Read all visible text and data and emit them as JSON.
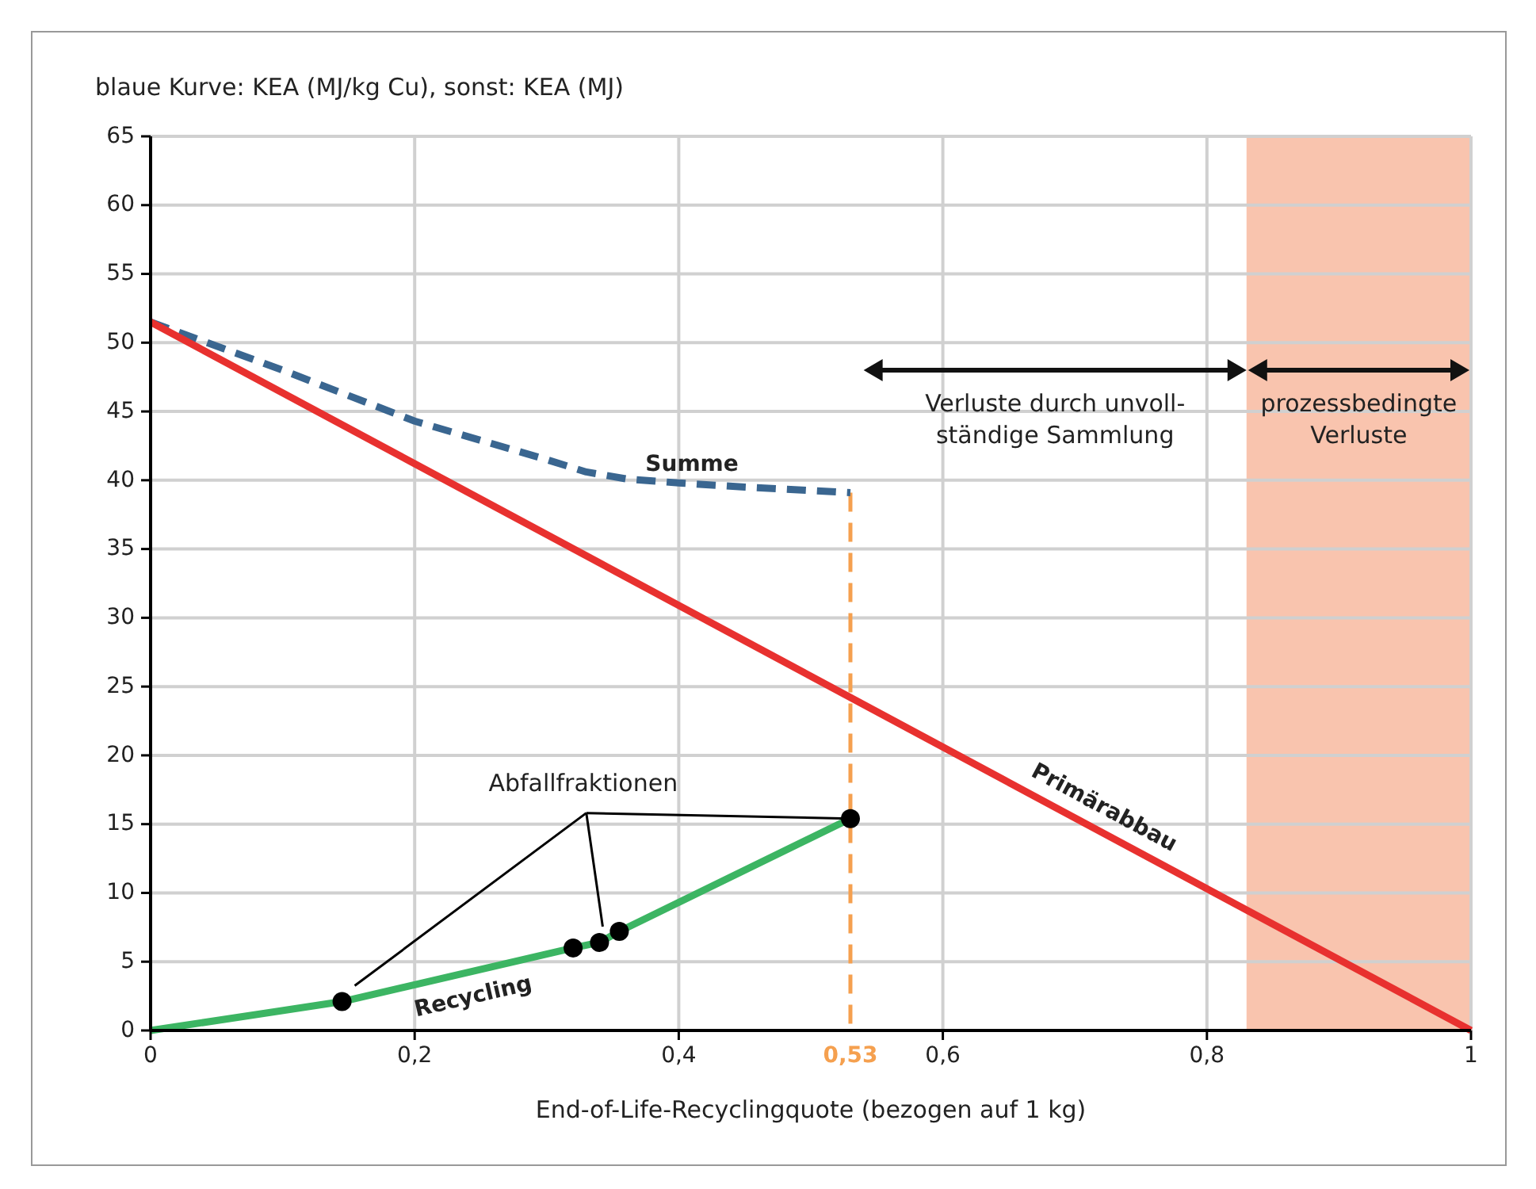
{
  "chart_data": {
    "type": "line",
    "ylabel": "blaue Kurve: KEA (MJ/kg Cu), sonst: KEA (MJ)",
    "xlabel": "End-of-Life-Recyclingquote (bezogen auf 1 kg)",
    "xlim": [
      0,
      1
    ],
    "ylim": [
      0,
      65
    ],
    "xticks": [
      0,
      {
        "value": 0.2,
        "label": "0,2"
      },
      {
        "value": 0.4,
        "label": "0,4"
      },
      {
        "value": 0.6,
        "label": "0,6"
      },
      {
        "value": 0.8,
        "label": "0,8"
      },
      1
    ],
    "yticks": [
      0,
      5,
      10,
      15,
      20,
      25,
      30,
      35,
      40,
      45,
      50,
      55,
      60,
      65
    ],
    "grid": true,
    "series": [
      {
        "name": "Summe",
        "color": "#3a6690",
        "line_style": "dashed",
        "x": [
          0,
          0.1,
          0.2,
          0.3,
          0.33,
          0.36,
          0.4,
          0.45,
          0.53
        ],
        "values": [
          51.5,
          48,
          44.3,
          41.5,
          40.6,
          40.1,
          39.8,
          39.5,
          39.1
        ]
      },
      {
        "name": "Primärabbau",
        "color": "#e8312f",
        "line_style": "solid",
        "x": [
          0,
          1
        ],
        "values": [
          51.5,
          0
        ]
      },
      {
        "name": "Recycling",
        "color": "#3cb563",
        "line_style": "solid",
        "x": [
          0,
          0.145,
          0.32,
          0.34,
          0.355,
          0.53
        ],
        "values": [
          0,
          2.1,
          6.0,
          6.4,
          7.2,
          15.4
        ]
      },
      {
        "type": "scatter",
        "color": "#000000",
        "marker": "circle",
        "x": [
          0.145,
          0.32,
          0.34,
          0.355,
          0.53
        ],
        "values": [
          2.1,
          6.0,
          6.4,
          7.2,
          15.4
        ]
      }
    ],
    "ref_lines": [
      {
        "axis": "x",
        "value": 0.53,
        "label": "0,53",
        "color": "#f5a04f",
        "line_style": "dashed"
      }
    ],
    "bands": [
      {
        "axis": "x",
        "from": 0.83,
        "to": 1,
        "label": "prozessbedingte\nVerluste",
        "color": "#f9c4ae"
      }
    ],
    "annotations": [
      "Verluste durch unvoll-\nständige Sammlung",
      {
        "text": "Abfallfraktionen",
        "x": 0.53,
        "y": 15.4
      }
    ]
  }
}
